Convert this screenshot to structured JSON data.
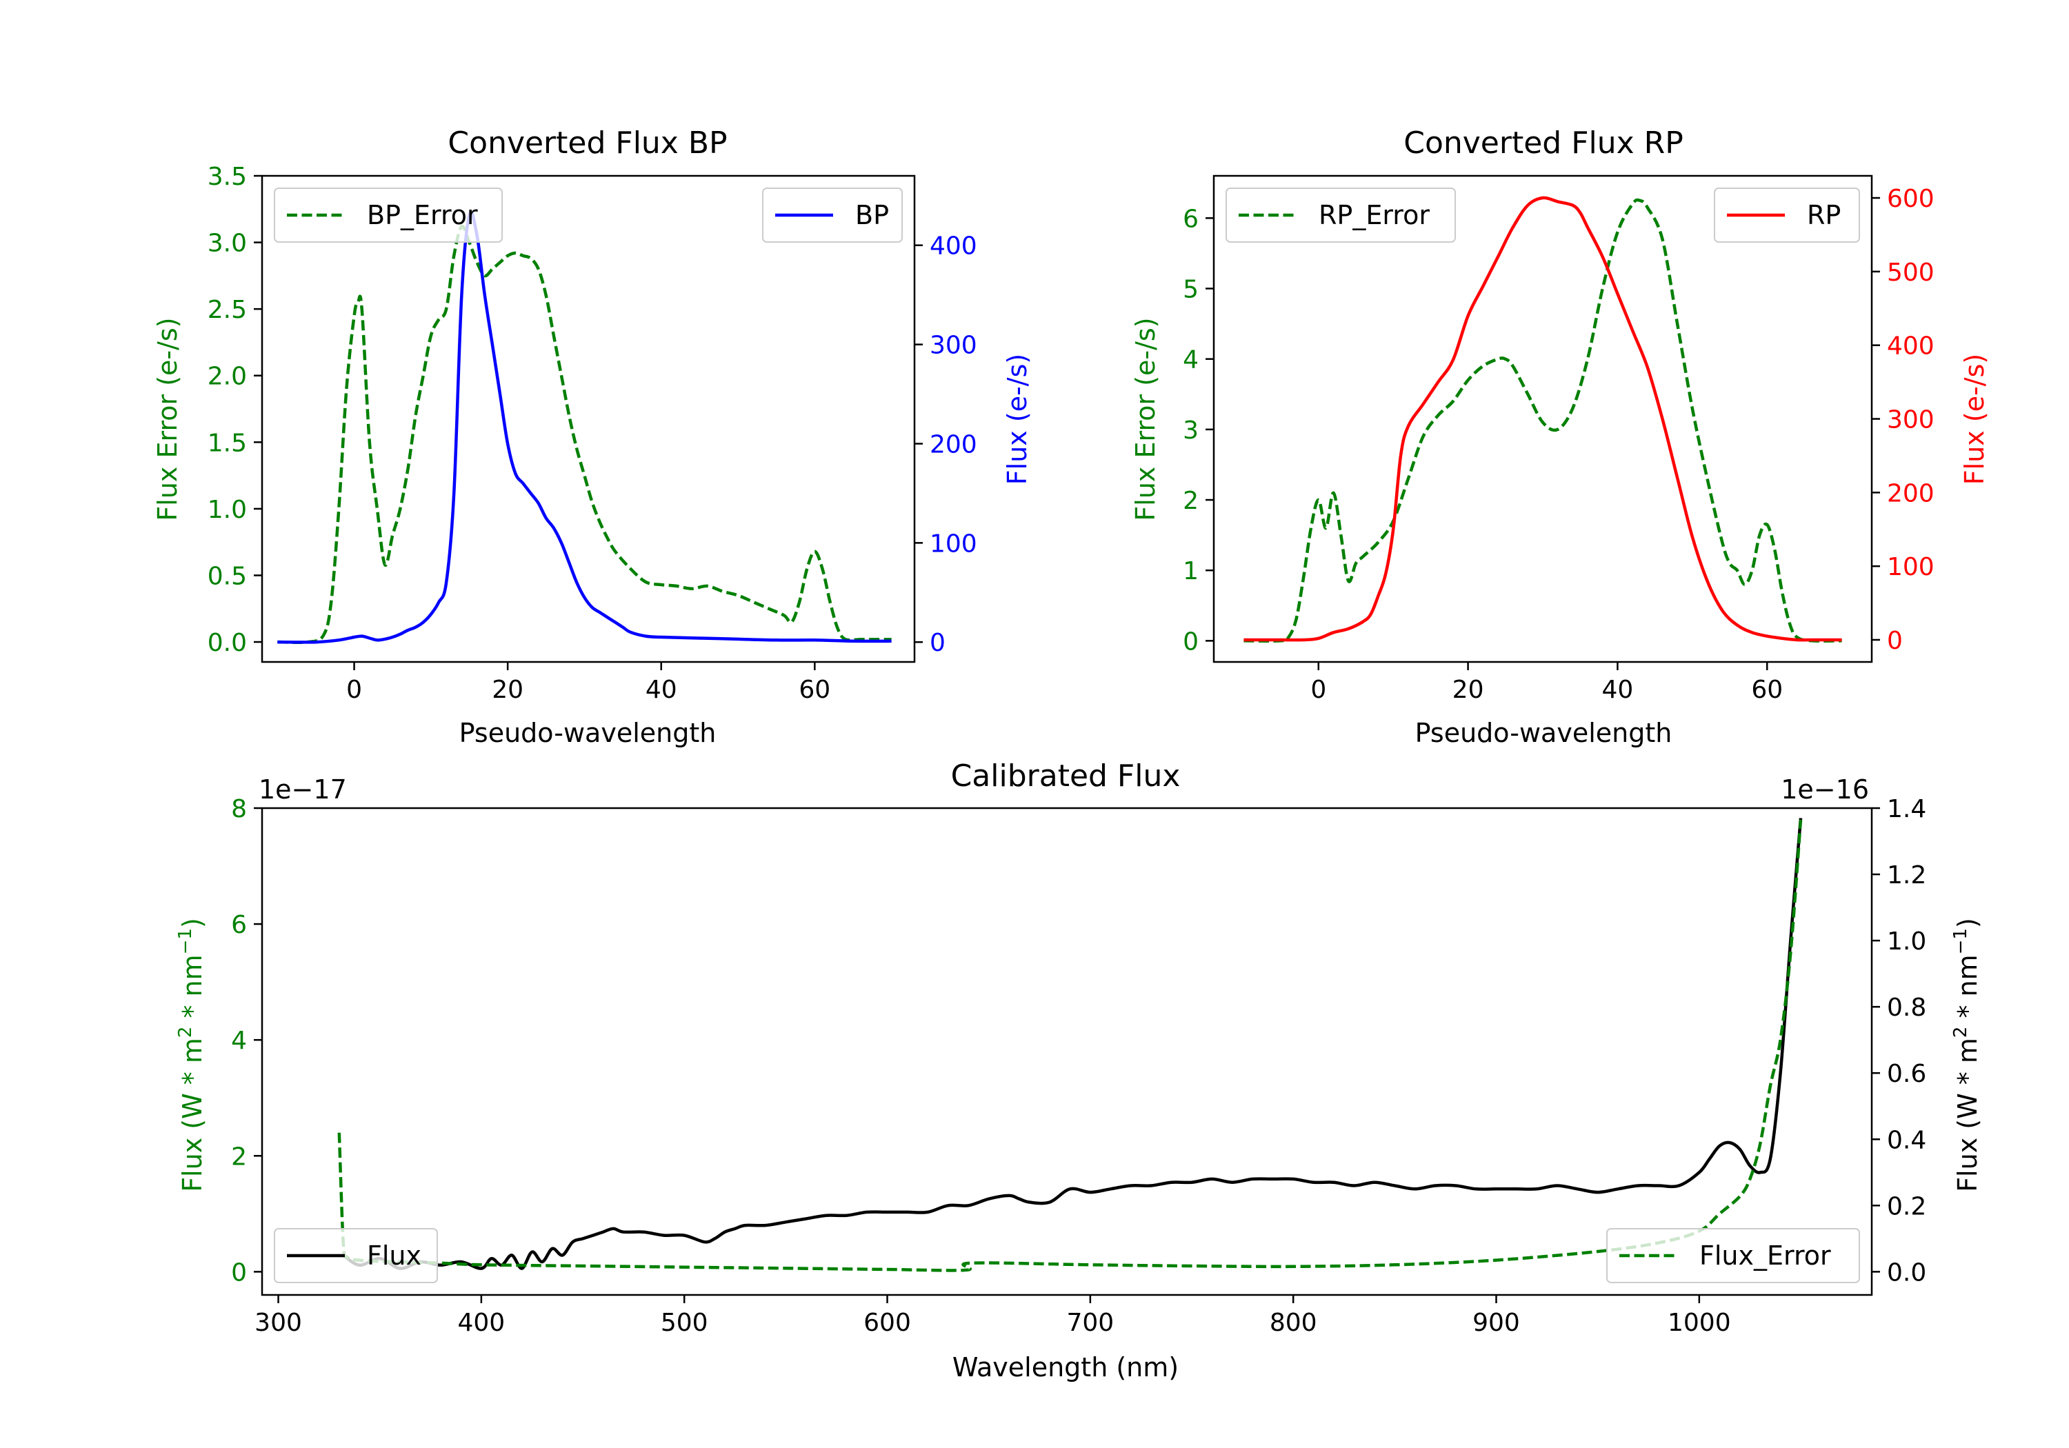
{
  "chart_data": [
    {
      "type": "line",
      "title": "Converted Flux BP",
      "xlabel": "Pseudo-wavelength",
      "ylabel_left": "Flux Error (e-/s)",
      "ylabel_right": "Flux (e-/s)",
      "xlim": [
        -12,
        73
      ],
      "ylim_left": [
        -0.15,
        3.5
      ],
      "ylim_right": [
        -20,
        470
      ],
      "x_ticks": [
        0,
        20,
        40,
        60
      ],
      "y_ticks_left": [
        0.0,
        0.5,
        1.0,
        1.5,
        2.0,
        2.5,
        3.0,
        3.5
      ],
      "y_ticks_left_labels": [
        "0.0",
        "0.5",
        "1.0",
        "1.5",
        "2.0",
        "2.5",
        "3.0",
        "3.5"
      ],
      "y_ticks_right": [
        0,
        100,
        200,
        300,
        400
      ],
      "legend_left": "BP_Error",
      "legend_right": "BP",
      "legend_left_position": "upper-left",
      "legend_right_position": "upper-right",
      "series": [
        {
          "name": "BP_Error",
          "axis": "left",
          "color": "#008000",
          "style": "dashed",
          "x": [
            -10,
            -6,
            -4,
            -3,
            -2,
            -1,
            0,
            0.5,
            1,
            2,
            3,
            4,
            5,
            6,
            7,
            8,
            9,
            10,
            11,
            12,
            13,
            14,
            15,
            16,
            17,
            18,
            19,
            20,
            21,
            22,
            23,
            24,
            25,
            26,
            27,
            28,
            29,
            30,
            31,
            32,
            33,
            34,
            36,
            38,
            40,
            42,
            44,
            46,
            48,
            50,
            52,
            54,
            56,
            57,
            58,
            59,
            60,
            61,
            62,
            63,
            64,
            66,
            68,
            70
          ],
          "y": [
            0.0,
            0.0,
            0.05,
            0.3,
            1.0,
            1.9,
            2.45,
            2.55,
            2.5,
            1.5,
            1.0,
            0.58,
            0.8,
            1.0,
            1.3,
            1.7,
            2.0,
            2.3,
            2.42,
            2.5,
            2.9,
            3.12,
            3.0,
            2.85,
            2.75,
            2.8,
            2.85,
            2.9,
            2.92,
            2.9,
            2.88,
            2.8,
            2.6,
            2.3,
            2.0,
            1.7,
            1.45,
            1.25,
            1.05,
            0.9,
            0.78,
            0.68,
            0.55,
            0.45,
            0.43,
            0.42,
            0.4,
            0.42,
            0.38,
            0.35,
            0.3,
            0.25,
            0.2,
            0.15,
            0.3,
            0.55,
            0.68,
            0.55,
            0.3,
            0.1,
            0.02,
            0.02,
            0.02,
            0.02
          ]
        },
        {
          "name": "BP",
          "axis": "right",
          "color": "#0000ff",
          "style": "solid",
          "x": [
            -10,
            -5,
            -2,
            0,
            1,
            2,
            3,
            4,
            5,
            6,
            7,
            8,
            9,
            10,
            11,
            12,
            13,
            14,
            15,
            16,
            17,
            18,
            19,
            20,
            21,
            22,
            23,
            24,
            25,
            26,
            27,
            28,
            29,
            30,
            31,
            32,
            33,
            34,
            35,
            36,
            38,
            40,
            45,
            50,
            55,
            60,
            65,
            70
          ],
          "y": [
            0,
            0,
            2,
            5,
            6,
            4,
            2,
            3,
            5,
            8,
            12,
            15,
            20,
            28,
            40,
            60,
            150,
            350,
            430,
            410,
            350,
            300,
            250,
            200,
            170,
            160,
            150,
            140,
            125,
            115,
            100,
            80,
            60,
            45,
            35,
            30,
            25,
            20,
            15,
            10,
            6,
            5,
            4,
            3,
            2,
            2,
            1,
            1
          ]
        }
      ]
    },
    {
      "type": "line",
      "title": "Converted Flux RP",
      "xlabel": "Pseudo-wavelength",
      "ylabel_left": "Flux Error (e-/s)",
      "ylabel_right": "Flux (e-/s)",
      "xlim": [
        -14,
        74
      ],
      "ylim_left": [
        -0.3,
        6.6
      ],
      "ylim_right": [
        -30,
        630
      ],
      "x_ticks": [
        0,
        20,
        40,
        60
      ],
      "y_ticks_left": [
        0,
        1,
        2,
        3,
        4,
        5,
        6
      ],
      "y_ticks_right": [
        0,
        100,
        200,
        300,
        400,
        500,
        600
      ],
      "legend_left": "RP_Error",
      "legend_right": "RP",
      "legend_left_position": "upper-left",
      "legend_right_position": "upper-right",
      "series": [
        {
          "name": "RP_Error",
          "axis": "left",
          "color": "#008000",
          "style": "dashed",
          "x": [
            -10,
            -5,
            -4,
            -3,
            -2,
            -1,
            0,
            1,
            2,
            3,
            4,
            5,
            6,
            8,
            10,
            12,
            14,
            16,
            18,
            20,
            22,
            24,
            25,
            26,
            28,
            30,
            32,
            34,
            36,
            38,
            40,
            42,
            43,
            44,
            46,
            48,
            50,
            52,
            54,
            55,
            56,
            57,
            58,
            59,
            60,
            61,
            62,
            63,
            64,
            66,
            70
          ],
          "y": [
            0,
            0,
            0.05,
            0.3,
            0.9,
            1.6,
            2.0,
            1.6,
            2.1,
            1.5,
            0.85,
            1.1,
            1.2,
            1.4,
            1.7,
            2.3,
            2.9,
            3.2,
            3.4,
            3.7,
            3.9,
            4.0,
            4.0,
            3.9,
            3.5,
            3.1,
            3.0,
            3.3,
            4.0,
            5.0,
            5.8,
            6.2,
            6.25,
            6.15,
            5.7,
            4.5,
            3.3,
            2.3,
            1.4,
            1.1,
            1.0,
            0.8,
            1.0,
            1.5,
            1.65,
            1.3,
            0.7,
            0.25,
            0.05,
            0,
            0
          ]
        },
        {
          "name": "RP",
          "axis": "right",
          "color": "#ff0000",
          "style": "solid",
          "x": [
            -10,
            -5,
            -2,
            0,
            2,
            4,
            6,
            7,
            8,
            9,
            10,
            11,
            12,
            14,
            16,
            18,
            20,
            22,
            24,
            26,
            28,
            30,
            32,
            34,
            35,
            36,
            38,
            40,
            42,
            44,
            46,
            48,
            50,
            52,
            54,
            56,
            58,
            60,
            62,
            64,
            66,
            70
          ],
          "y": [
            0,
            0,
            0,
            2,
            10,
            15,
            25,
            35,
            60,
            90,
            150,
            250,
            290,
            320,
            350,
            380,
            440,
            480,
            520,
            560,
            590,
            600,
            595,
            590,
            580,
            560,
            520,
            470,
            420,
            370,
            300,
            220,
            140,
            80,
            40,
            20,
            10,
            5,
            2,
            0,
            0,
            0
          ]
        }
      ]
    },
    {
      "type": "line",
      "title": "Calibrated Flux",
      "xlabel": "Wavelength (nm)",
      "ylabel_left_prefix": "Flux (W * m",
      "ylabel_right_prefix": "Flux (W * m",
      "ylabel_mid": " * nm",
      "ylabel_sup1": "2",
      "ylabel_sup2": "−1",
      "ylabel_end": ")",
      "offset_left": "1e−17",
      "offset_right": "1e−16",
      "xlim": [
        292,
        1085
      ],
      "ylim_left": [
        -0.4,
        8.0
      ],
      "ylim_right": [
        -0.07,
        1.4
      ],
      "x_ticks": [
        300,
        400,
        500,
        600,
        700,
        800,
        900,
        1000
      ],
      "y_ticks_left": [
        0,
        2,
        4,
        6,
        8
      ],
      "y_ticks_right": [
        0.0,
        0.2,
        0.4,
        0.6,
        0.8,
        1.0,
        1.2,
        1.4
      ],
      "y_ticks_right_labels": [
        "0.0",
        "0.2",
        "0.4",
        "0.6",
        "0.8",
        "1.0",
        "1.2",
        "1.4"
      ],
      "legend_left": "Flux",
      "legend_right": "Flux_Error",
      "legend_left_position": "lower-left",
      "legend_right_position": "lower-right",
      "series": [
        {
          "name": "Flux",
          "axis": "right",
          "color": "#000000",
          "style": "solid",
          "x": [
            332,
            340,
            350,
            360,
            370,
            380,
            390,
            400,
            405,
            410,
            415,
            420,
            425,
            430,
            435,
            440,
            445,
            450,
            455,
            460,
            465,
            470,
            480,
            490,
            500,
            510,
            515,
            520,
            525,
            530,
            540,
            550,
            560,
            570,
            580,
            590,
            600,
            610,
            620,
            630,
            640,
            650,
            660,
            665,
            670,
            680,
            690,
            700,
            710,
            720,
            730,
            740,
            750,
            760,
            770,
            780,
            790,
            800,
            810,
            820,
            830,
            840,
            850,
            860,
            870,
            880,
            890,
            900,
            910,
            920,
            930,
            940,
            950,
            960,
            970,
            980,
            990,
            1000,
            1005,
            1010,
            1015,
            1020,
            1025,
            1030,
            1035,
            1040,
            1045,
            1050
          ],
          "y": [
            0.05,
            0.02,
            0.04,
            0.01,
            0.03,
            0.02,
            0.03,
            0.01,
            0.04,
            0.02,
            0.05,
            0.01,
            0.06,
            0.03,
            0.07,
            0.05,
            0.09,
            0.1,
            0.11,
            0.12,
            0.13,
            0.12,
            0.12,
            0.11,
            0.11,
            0.09,
            0.1,
            0.12,
            0.13,
            0.14,
            0.14,
            0.15,
            0.16,
            0.17,
            0.17,
            0.18,
            0.18,
            0.18,
            0.18,
            0.2,
            0.2,
            0.22,
            0.23,
            0.22,
            0.21,
            0.21,
            0.25,
            0.24,
            0.25,
            0.26,
            0.26,
            0.27,
            0.27,
            0.28,
            0.27,
            0.28,
            0.28,
            0.28,
            0.27,
            0.27,
            0.26,
            0.27,
            0.26,
            0.25,
            0.26,
            0.26,
            0.25,
            0.25,
            0.25,
            0.25,
            0.26,
            0.25,
            0.24,
            0.25,
            0.26,
            0.26,
            0.26,
            0.3,
            0.34,
            0.38,
            0.39,
            0.37,
            0.32,
            0.3,
            0.34,
            0.6,
            1.0,
            1.37
          ]
        },
        {
          "name": "Flux_Error",
          "axis": "left",
          "color": "#008000",
          "style": "dashed",
          "x": [
            330,
            332,
            334,
            340,
            350,
            360,
            380,
            400,
            450,
            500,
            550,
            600,
            639,
            641,
            700,
            750,
            800,
            850,
            900,
            950,
            980,
            1000,
            1010,
            1020,
            1025,
            1030,
            1035,
            1040,
            1045,
            1050
          ],
          "y": [
            2.4,
            0.5,
            0.25,
            0.2,
            0.18,
            0.17,
            0.15,
            0.12,
            0.1,
            0.08,
            0.06,
            0.04,
            0.03,
            0.15,
            0.12,
            0.1,
            0.09,
            0.12,
            0.2,
            0.35,
            0.5,
            0.7,
            1.0,
            1.3,
            1.6,
            2.2,
            3.2,
            4.0,
            5.5,
            7.8
          ]
        }
      ]
    }
  ]
}
